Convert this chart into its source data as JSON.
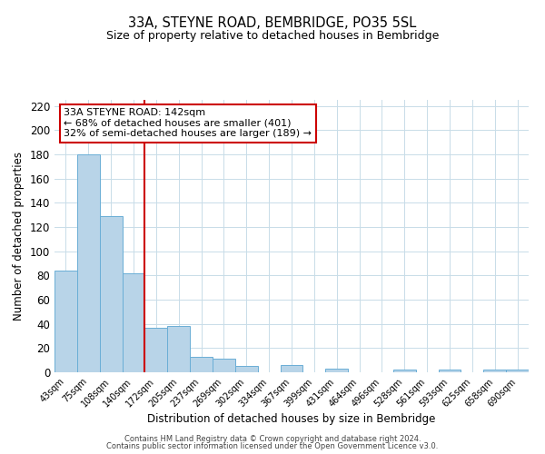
{
  "title": "33A, STEYNE ROAD, BEMBRIDGE, PO35 5SL",
  "subtitle": "Size of property relative to detached houses in Bembridge",
  "xlabel": "Distribution of detached houses by size in Bembridge",
  "ylabel": "Number of detached properties",
  "bar_labels": [
    "43sqm",
    "75sqm",
    "108sqm",
    "140sqm",
    "172sqm",
    "205sqm",
    "237sqm",
    "269sqm",
    "302sqm",
    "334sqm",
    "367sqm",
    "399sqm",
    "431sqm",
    "464sqm",
    "496sqm",
    "528sqm",
    "561sqm",
    "593sqm",
    "625sqm",
    "658sqm",
    "690sqm"
  ],
  "bar_values": [
    84,
    180,
    129,
    82,
    37,
    38,
    13,
    11,
    5,
    0,
    6,
    0,
    3,
    0,
    0,
    2,
    0,
    2,
    0,
    2,
    2
  ],
  "bar_color": "#b8d4e8",
  "bar_edge_color": "#6aaed6",
  "reference_line_index": 3,
  "reference_line_color": "#cc0000",
  "ylim": [
    0,
    225
  ],
  "yticks": [
    0,
    20,
    40,
    60,
    80,
    100,
    120,
    140,
    160,
    180,
    200,
    220
  ],
  "annotation_text": "33A STEYNE ROAD: 142sqm\n← 68% of detached houses are smaller (401)\n32% of semi-detached houses are larger (189) →",
  "annotation_box_edge": "#cc0000",
  "footer_line1": "Contains HM Land Registry data © Crown copyright and database right 2024.",
  "footer_line2": "Contains public sector information licensed under the Open Government Licence v3.0.",
  "background_color": "#ffffff",
  "grid_color": "#c8dce8"
}
